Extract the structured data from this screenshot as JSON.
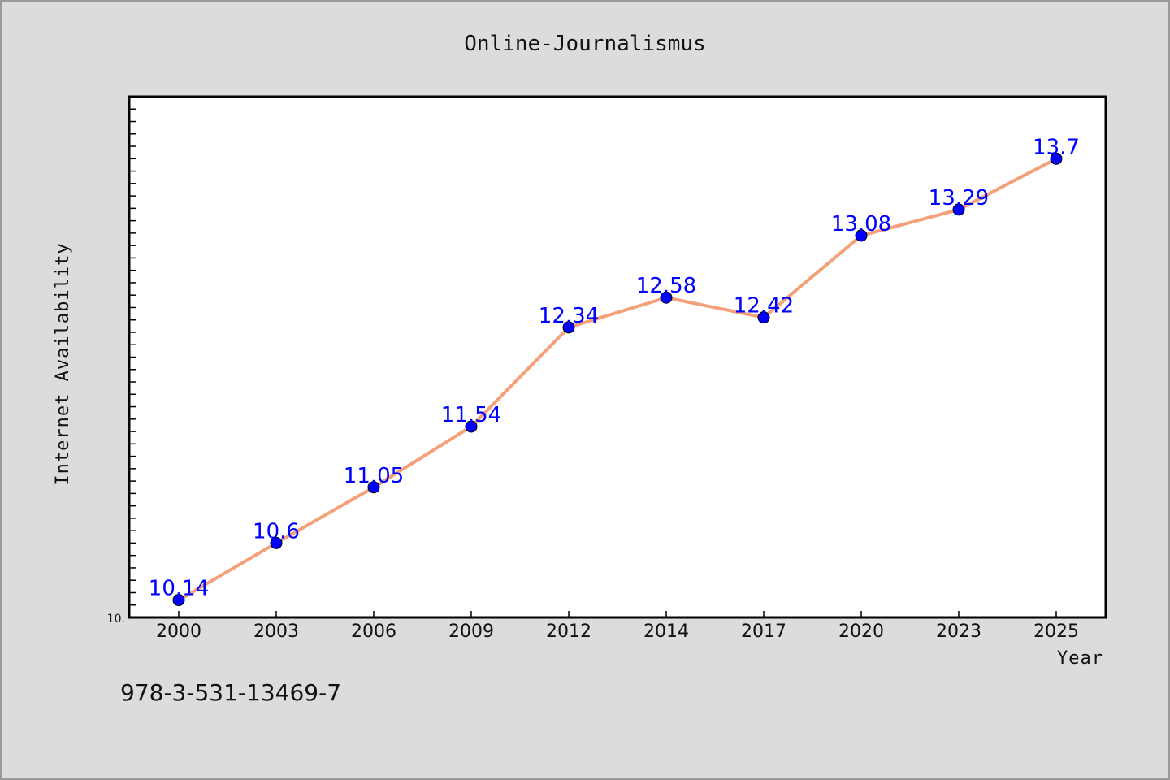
{
  "footer_text": "978-3-531-13469-7",
  "chart_data": {
    "type": "line",
    "title": "Online-Journalismus",
    "xlabel": "Year",
    "ylabel": "Internet Availability",
    "categories": [
      "2000",
      "2003",
      "2006",
      "2009",
      "2012",
      "2014",
      "2017",
      "2020",
      "2023",
      "2025"
    ],
    "series": [
      {
        "values": [
          10.14,
          10.6,
          11.05,
          11.54,
          12.34,
          12.58,
          12.42,
          13.08,
          13.29,
          13.7
        ],
        "labels": [
          "10.14",
          "10.6",
          "11.05",
          "11.54",
          "12.34",
          "12.58",
          "12.42",
          "13.08",
          "13.29",
          "13.7"
        ],
        "line_color": "#f4a07a",
        "marker_color": "#0000ff"
      }
    ],
    "ylim": [
      10.0,
      14.2
    ],
    "y_min_label": "10.",
    "grid": false,
    "legend": false
  }
}
